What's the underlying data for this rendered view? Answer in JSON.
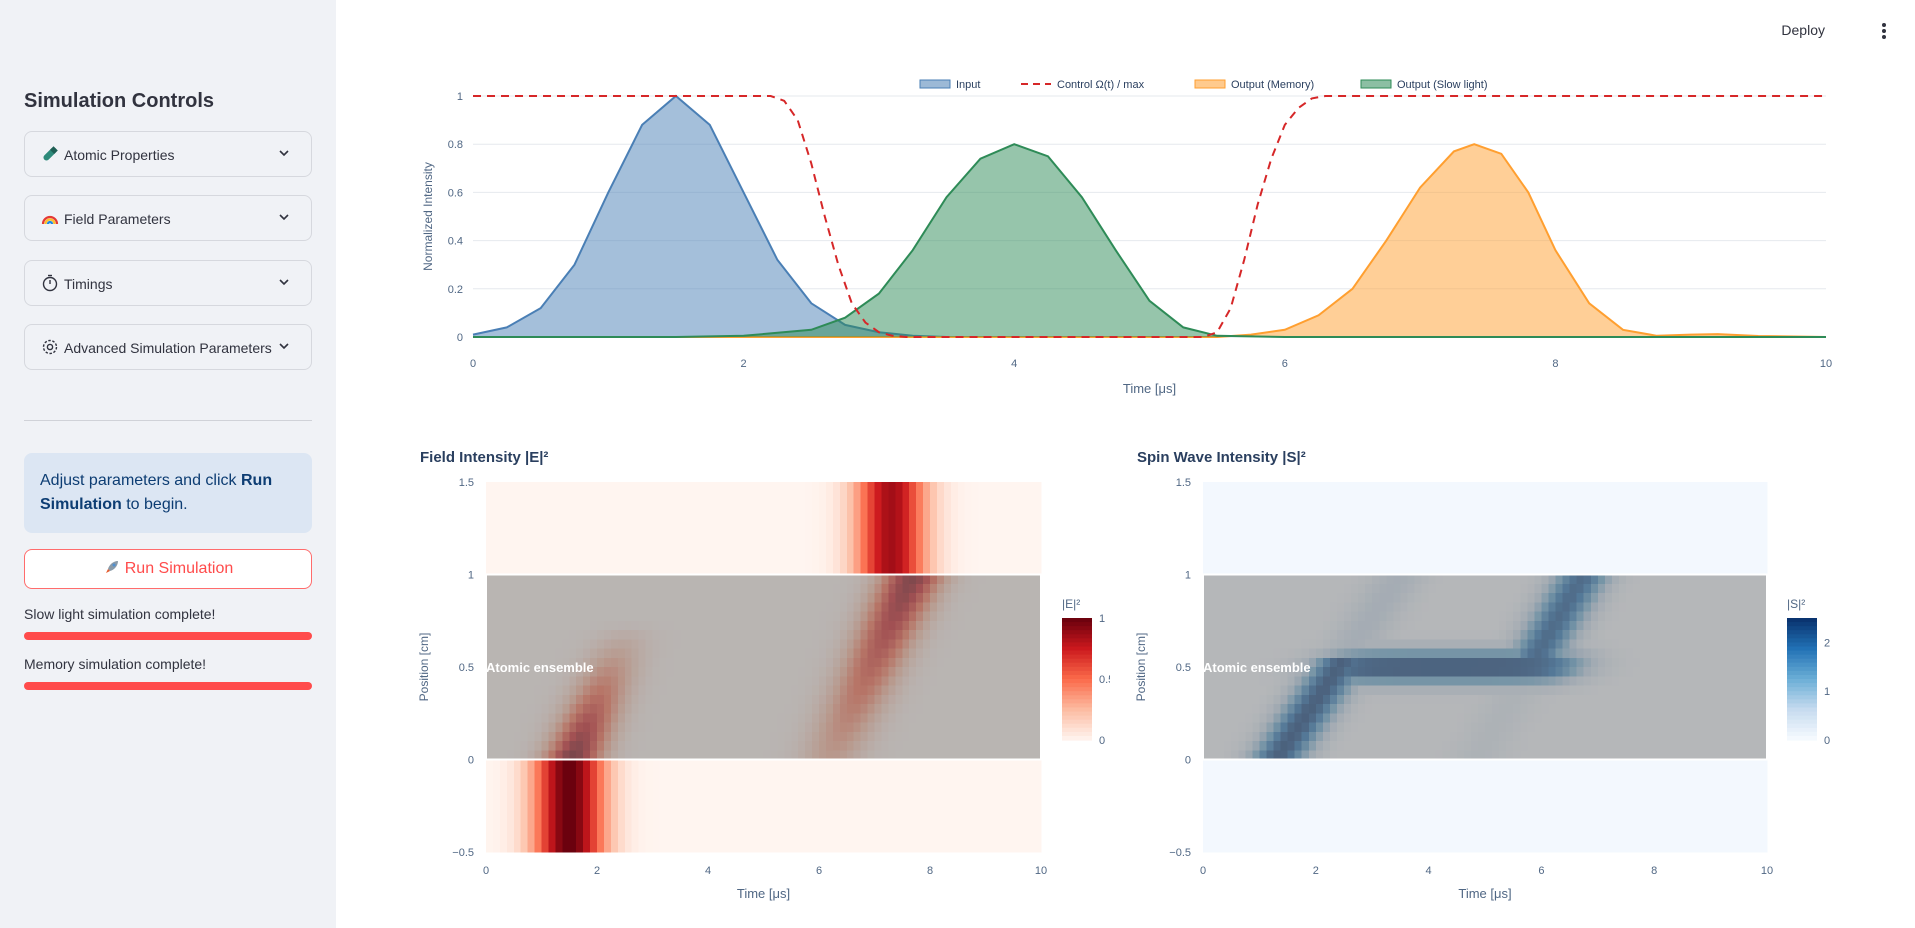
{
  "header": {
    "deploy_label": "Deploy",
    "menu_icon": "vertical-dots-icon"
  },
  "sidebar": {
    "title": "Simulation Controls",
    "expanders": [
      {
        "label": "Atomic Properties",
        "icon": "test-tube-icon"
      },
      {
        "label": "Field Parameters",
        "icon": "rainbow-icon"
      },
      {
        "label": "Timings",
        "icon": "stopwatch-icon"
      },
      {
        "label": "Advanced Simulation Parameters",
        "icon": "gear-icon"
      }
    ],
    "info": {
      "prefix": "Adjust parameters and click ",
      "bold": "Run Simulation",
      "suffix": " to begin."
    },
    "run_button": {
      "label": "Run Simulation",
      "icon": "rocket-icon"
    },
    "status": [
      {
        "text": "Slow light simulation complete!",
        "progress": 1.0
      },
      {
        "text": "Memory simulation complete!",
        "progress": 1.0
      }
    ],
    "colors": {
      "accent": "#ff4b4b",
      "info_bg": "#dce6f3"
    }
  },
  "chart_data": [
    {
      "type": "area",
      "title": "",
      "xlabel": "Time [μs]",
      "ylabel": "Normalized Intensity",
      "xlim": [
        0,
        10
      ],
      "ylim": [
        0,
        1
      ],
      "xticks": [
        "0",
        "2",
        "4",
        "6",
        "8",
        "10"
      ],
      "yticks": [
        "0",
        "0.2",
        "0.4",
        "0.6",
        "0.8",
        "1"
      ],
      "legend_position": "top",
      "series": [
        {
          "name": "Input",
          "style": "filled",
          "color": "#4a7fb5",
          "x": [
            0,
            0.25,
            0.5,
            0.75,
            1,
            1.25,
            1.5,
            1.75,
            2,
            2.25,
            2.5,
            2.75,
            3,
            3.25,
            3.5
          ],
          "y": [
            0.01,
            0.04,
            0.12,
            0.3,
            0.6,
            0.88,
            1.0,
            0.88,
            0.6,
            0.32,
            0.14,
            0.05,
            0.02,
            0.005,
            0
          ]
        },
        {
          "name": "Control Ω(t) / max",
          "style": "dashed",
          "color": "#d62728",
          "x": [
            0,
            2.2,
            2.3,
            2.4,
            2.5,
            2.6,
            2.7,
            2.8,
            2.9,
            3.0,
            3.1,
            3.2,
            5.4,
            5.5,
            5.6,
            5.7,
            5.8,
            5.9,
            6.0,
            6.1,
            6.2,
            6.3,
            10
          ],
          "y": [
            1,
            1,
            0.98,
            0.9,
            0.72,
            0.5,
            0.3,
            0.14,
            0.06,
            0.02,
            0.005,
            0,
            0,
            0.02,
            0.12,
            0.32,
            0.55,
            0.74,
            0.88,
            0.95,
            0.99,
            1,
            1
          ]
        },
        {
          "name": "Output (Memory)",
          "style": "filled",
          "color": "#ff9f30",
          "x": [
            0,
            5.5,
            5.75,
            6,
            6.25,
            6.5,
            6.75,
            7,
            7.25,
            7.4,
            7.6,
            7.8,
            8,
            8.25,
            8.5,
            8.75,
            9.0,
            9.2,
            9.5,
            10
          ],
          "y": [
            0,
            0,
            0.01,
            0.03,
            0.09,
            0.2,
            0.4,
            0.62,
            0.77,
            0.8,
            0.76,
            0.6,
            0.36,
            0.14,
            0.03,
            0.005,
            0.01,
            0.012,
            0.004,
            0
          ]
        },
        {
          "name": "Output (Slow light)",
          "style": "filled",
          "color": "#2e8b57",
          "x": [
            0,
            1.5,
            2,
            2.5,
            2.75,
            3,
            3.25,
            3.5,
            3.75,
            4.0,
            4.25,
            4.5,
            4.75,
            5,
            5.25,
            5.5,
            6,
            10
          ],
          "y": [
            0,
            0,
            0.005,
            0.03,
            0.08,
            0.18,
            0.36,
            0.58,
            0.74,
            0.8,
            0.75,
            0.58,
            0.36,
            0.15,
            0.04,
            0.005,
            0,
            0
          ]
        }
      ]
    },
    {
      "type": "heatmap",
      "title": "Field Intensity |E|²",
      "xlabel": "Time [μs]",
      "ylabel": "Position [cm]",
      "xlim": [
        0,
        10
      ],
      "ylim": [
        -0.5,
        1.5
      ],
      "xticks": [
        "0",
        "2",
        "4",
        "6",
        "8",
        "10"
      ],
      "yticks": [
        "−0.5",
        "0",
        "0.5",
        "1",
        "1.5"
      ],
      "colorbar_title": "|E|²",
      "colorbar_ticks": [
        "0",
        "0.5",
        "1"
      ],
      "annotation": "Atomic ensemble",
      "colorscale": [
        "#fff5f0",
        "#fcbba1",
        "#fb6a4a",
        "#cb181d",
        "#67000d"
      ]
    },
    {
      "type": "heatmap",
      "title": "Spin Wave Intensity |S|²",
      "xlabel": "Time [μs]",
      "ylabel": "Position [cm]",
      "xlim": [
        0,
        10
      ],
      "ylim": [
        -0.5,
        1.5
      ],
      "xticks": [
        "0",
        "2",
        "4",
        "6",
        "8",
        "10"
      ],
      "yticks": [
        "−0.5",
        "0",
        "0.5",
        "1",
        "1.5"
      ],
      "colorbar_title": "|S|²",
      "colorbar_ticks": [
        "0",
        "1",
        "2"
      ],
      "annotation": "Atomic ensemble",
      "colorscale": [
        "#f7fbff",
        "#c6dbef",
        "#6baed6",
        "#2171b5",
        "#08306b"
      ]
    }
  ]
}
